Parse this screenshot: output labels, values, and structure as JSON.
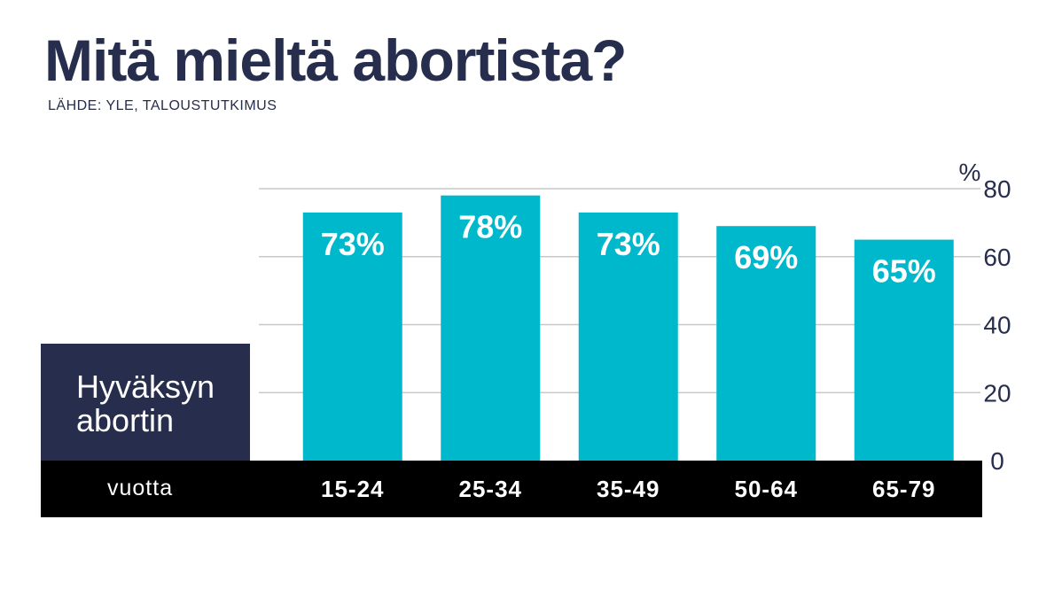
{
  "title": "Mitä mieltä abortista?",
  "source": "LÄHDE: YLE, TALOUSTUTKIMUS",
  "series_label": "Hyväksyn abortin",
  "x_unit_label": "vuotta",
  "y_unit_label": "%",
  "colors": {
    "bar": "#00b8cc",
    "navy": "#262d4d",
    "axis_band": "#000000",
    "grid": "#c8c8c8"
  },
  "chart_data": {
    "type": "bar",
    "title": "Mitä mieltä abortista?",
    "subtitle": "LÄHDE: YLE, TALOUSTUTKIMUS",
    "xlabel": "vuotta",
    "ylabel": "%",
    "categories": [
      "15-24",
      "25-34",
      "35-49",
      "50-64",
      "65-79"
    ],
    "series": [
      {
        "name": "Hyväksyn abortin",
        "values": [
          73,
          78,
          73,
          69,
          65
        ]
      }
    ],
    "data_labels": [
      "73%",
      "78%",
      "73%",
      "69%",
      "65%"
    ],
    "ylim": [
      0,
      80
    ],
    "yticks": [
      0,
      20,
      40,
      60,
      80
    ],
    "y_axis_side": "right",
    "grid": true
  }
}
